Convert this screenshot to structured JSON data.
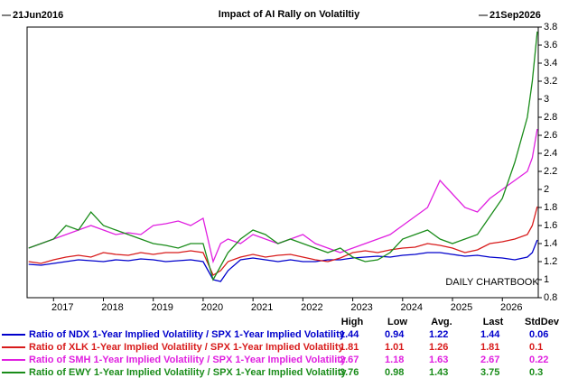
{
  "chart_data": {
    "type": "line",
    "title": "Impact of AI Rally on Volatiltiy",
    "start_label": "21Jun2016",
    "end_label": "21Sep2026",
    "annotation": "DAILY CHARTBOOK",
    "xlim": [
      2016.47,
      2026.72
    ],
    "xticks": [
      2017,
      2018,
      2019,
      2020,
      2021,
      2022,
      2023,
      2024,
      2025,
      2026
    ],
    "ylim": [
      0.8,
      3.8
    ],
    "yticks": [
      0.8,
      1,
      1.2,
      1.4,
      1.6,
      1.8,
      2,
      2.2,
      2.4,
      2.6,
      2.8,
      3,
      3.2,
      3.4,
      3.6,
      3.8
    ],
    "table_headers": [
      "High",
      "Low",
      "Avg.",
      "Last",
      "StdDev"
    ],
    "x": [
      2016.5,
      2016.75,
      2017,
      2017.25,
      2017.5,
      2017.75,
      2018,
      2018.25,
      2018.5,
      2018.75,
      2019,
      2019.25,
      2019.5,
      2019.75,
      2020,
      2020.2,
      2020.35,
      2020.5,
      2020.75,
      2021,
      2021.25,
      2021.5,
      2021.75,
      2022,
      2022.25,
      2022.5,
      2022.75,
      2023,
      2023.25,
      2023.5,
      2023.75,
      2024,
      2024.25,
      2024.5,
      2024.75,
      2025,
      2025.25,
      2025.5,
      2025.75,
      2026,
      2026.25,
      2026.5,
      2026.6,
      2026.7
    ],
    "series": [
      {
        "name": "Ratio of NDX 1-Year Implied Volatility / SPX 1-Year Implied Volatility",
        "color": "#0000cc",
        "values": [
          1.17,
          1.16,
          1.18,
          1.2,
          1.22,
          1.21,
          1.2,
          1.22,
          1.21,
          1.23,
          1.22,
          1.2,
          1.21,
          1.22,
          1.2,
          1.0,
          0.98,
          1.1,
          1.22,
          1.24,
          1.22,
          1.2,
          1.22,
          1.2,
          1.2,
          1.22,
          1.22,
          1.24,
          1.25,
          1.26,
          1.25,
          1.27,
          1.28,
          1.3,
          1.3,
          1.28,
          1.26,
          1.27,
          1.25,
          1.24,
          1.22,
          1.25,
          1.3,
          1.44
        ],
        "stats": [
          1.44,
          0.94,
          1.22,
          1.44,
          0.06
        ]
      },
      {
        "name": "Ratio of XLK 1-Year Implied Volatility / SPX 1-Year Implied Volatility",
        "color": "#d81b1b",
        "values": [
          1.2,
          1.18,
          1.22,
          1.25,
          1.27,
          1.25,
          1.3,
          1.28,
          1.27,
          1.3,
          1.28,
          1.3,
          1.3,
          1.32,
          1.3,
          1.05,
          1.1,
          1.2,
          1.25,
          1.28,
          1.25,
          1.27,
          1.28,
          1.25,
          1.22,
          1.2,
          1.24,
          1.3,
          1.32,
          1.3,
          1.33,
          1.35,
          1.36,
          1.4,
          1.38,
          1.35,
          1.3,
          1.33,
          1.4,
          1.42,
          1.45,
          1.5,
          1.6,
          1.81
        ],
        "stats": [
          1.81,
          1.01,
          1.26,
          1.81,
          0.1
        ]
      },
      {
        "name": "Ratio of SMH 1-Year Implied Volatility / SPX 1-Year Implied Volatility",
        "color": "#e020e0",
        "values": [
          1.35,
          1.4,
          1.45,
          1.5,
          1.55,
          1.6,
          1.55,
          1.5,
          1.52,
          1.5,
          1.6,
          1.62,
          1.65,
          1.6,
          1.68,
          1.2,
          1.4,
          1.45,
          1.4,
          1.5,
          1.45,
          1.4,
          1.45,
          1.5,
          1.4,
          1.35,
          1.3,
          1.35,
          1.4,
          1.45,
          1.5,
          1.6,
          1.7,
          1.8,
          2.1,
          1.95,
          1.8,
          1.75,
          1.9,
          2.0,
          2.1,
          2.2,
          2.35,
          2.67
        ],
        "stats": [
          2.67,
          1.18,
          1.63,
          2.67,
          0.22
        ]
      },
      {
        "name": "Ratio of EWY 1-Year Implied Volatility / SPX 1-Year Implied Volatility",
        "color": "#1a8c1a",
        "values": [
          1.35,
          1.4,
          1.45,
          1.6,
          1.55,
          1.75,
          1.6,
          1.55,
          1.5,
          1.45,
          1.4,
          1.38,
          1.35,
          1.4,
          1.4,
          1.0,
          1.15,
          1.3,
          1.45,
          1.55,
          1.5,
          1.4,
          1.45,
          1.4,
          1.35,
          1.3,
          1.35,
          1.25,
          1.2,
          1.22,
          1.3,
          1.45,
          1.5,
          1.55,
          1.45,
          1.4,
          1.45,
          1.5,
          1.7,
          1.9,
          2.3,
          2.8,
          3.2,
          3.75
        ],
        "stats": [
          3.76,
          0.98,
          1.43,
          3.75,
          0.3
        ]
      }
    ]
  }
}
